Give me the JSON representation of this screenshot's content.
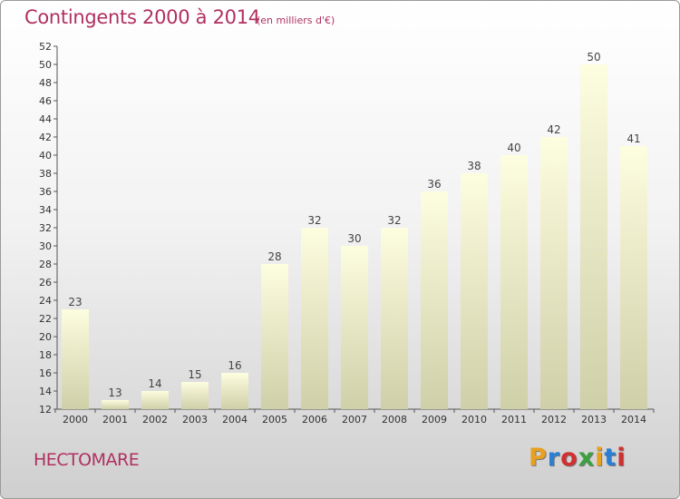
{
  "header": {
    "title": "Contingents 2000 à 2014",
    "subtitle": "(en milliers d'€)"
  },
  "footer": {
    "place": "HECTOMARE",
    "logo_text": "Proxiti",
    "logo_colors": [
      "#e8a020",
      "#2a7fd4",
      "#d03030",
      "#3aa040",
      "#e8a020",
      "#2a7fd4",
      "#d03030"
    ]
  },
  "chart_data": {
    "type": "bar",
    "title": "Contingents 2000 à 2014",
    "subtitle": "(en milliers d'€)",
    "categories": [
      "2000",
      "2001",
      "2002",
      "2003",
      "2004",
      "2005",
      "2006",
      "2007",
      "2008",
      "2009",
      "2010",
      "2011",
      "2012",
      "2013",
      "2014"
    ],
    "values": [
      23,
      13,
      14,
      15,
      16,
      28,
      32,
      30,
      32,
      36,
      38,
      40,
      42,
      50,
      41
    ],
    "ylim": [
      12,
      52
    ],
    "ytick_step": 2,
    "grid": false,
    "bar_color_top": "#fdfde0",
    "bar_color_bottom": "#cfcfa8"
  }
}
